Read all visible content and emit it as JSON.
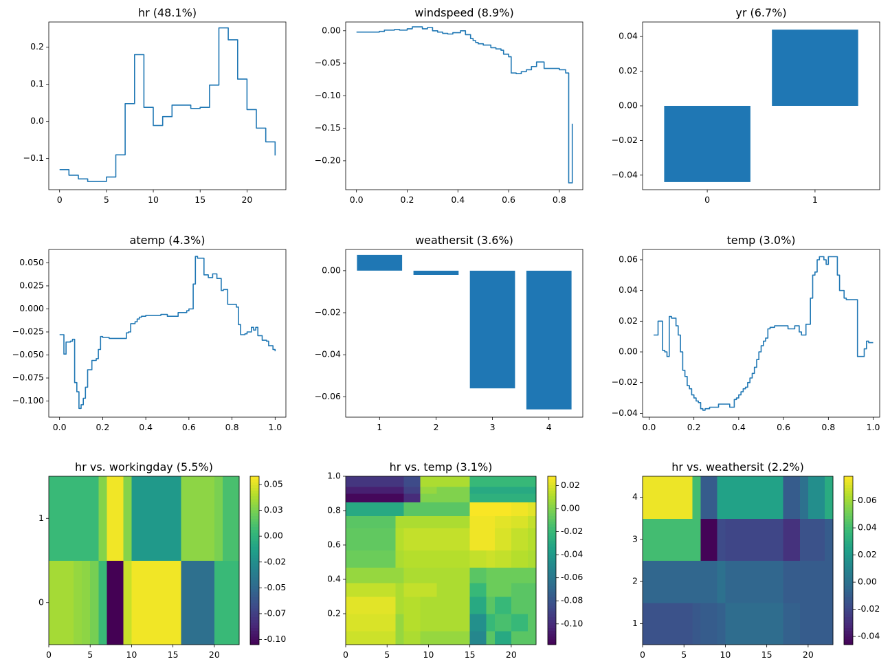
{
  "figure": {
    "background": "#ffffff",
    "line_color": "#1f77b4"
  },
  "chart_data": [
    {
      "id": "hr",
      "type": "line",
      "title": "hr (48.1%)",
      "xlim": [
        -1.15,
        24.15
      ],
      "ylim": [
        -0.184,
        0.268
      ],
      "xticks": [
        0,
        5,
        10,
        15,
        20
      ],
      "xtick_labels": [
        "0",
        "5",
        "10",
        "15",
        "20"
      ],
      "yticks": [
        -0.1,
        0.0,
        0.1,
        0.2
      ],
      "ytick_labels": [
        "−0.1",
        "0.0",
        "0.1",
        "0.2"
      ],
      "step": true,
      "x": [
        0,
        1,
        2,
        3,
        4,
        5,
        6,
        7,
        8,
        9,
        10,
        11,
        12,
        13,
        14,
        15,
        16,
        17,
        18,
        19,
        20,
        21,
        22,
        23
      ],
      "y": [
        -0.13,
        -0.145,
        -0.155,
        -0.162,
        -0.162,
        -0.15,
        -0.09,
        0.048,
        0.18,
        0.038,
        -0.011,
        0.013,
        0.044,
        0.044,
        0.035,
        0.038,
        0.098,
        0.252,
        0.22,
        0.114,
        0.032,
        -0.018,
        -0.055,
        -0.092
      ]
    },
    {
      "id": "windspeed",
      "type": "line",
      "title": "windspeed (8.9%)",
      "xlim": [
        -0.0425,
        0.8925
      ],
      "ylim": [
        -0.2445,
        0.0135
      ],
      "xticks": [
        0,
        0.2,
        0.4,
        0.6,
        0.8
      ],
      "xtick_labels": [
        "0.0",
        "0.2",
        "0.4",
        "0.6",
        "0.8"
      ],
      "yticks": [
        0,
        -0.05,
        -0.1,
        -0.15,
        -0.2
      ],
      "ytick_labels": [
        "0.00",
        "−0.05",
        "−0.10",
        "−0.15",
        "−0.20"
      ],
      "step": true,
      "x": [
        0,
        0.09,
        0.11,
        0.15,
        0.17,
        0.2,
        0.22,
        0.26,
        0.28,
        0.3,
        0.32,
        0.34,
        0.36,
        0.38,
        0.41,
        0.43,
        0.45,
        0.46,
        0.47,
        0.48,
        0.5,
        0.53,
        0.55,
        0.57,
        0.58,
        0.6,
        0.61,
        0.63,
        0.65,
        0.67,
        0.69,
        0.71,
        0.74,
        0.8,
        0.825,
        0.83,
        0.837,
        0.841,
        0.848,
        0.851
      ],
      "y": [
        -0.002,
        -0.001,
        0.001,
        0.002,
        0.001,
        0.003,
        0.006,
        0.003,
        0.005,
        0.0,
        -0.002,
        -0.004,
        -0.005,
        -0.003,
        0.0,
        -0.006,
        -0.012,
        -0.015,
        -0.018,
        -0.02,
        -0.022,
        -0.026,
        -0.028,
        -0.03,
        -0.036,
        -0.04,
        -0.065,
        -0.066,
        -0.063,
        -0.06,
        -0.055,
        -0.048,
        -0.058,
        -0.06,
        -0.065,
        -0.065,
        -0.234,
        -0.234,
        -0.234,
        -0.143
      ]
    },
    {
      "id": "yr",
      "type": "bar",
      "title": "yr (6.7%)",
      "xlim": [
        -0.6,
        1.6
      ],
      "ylim": [
        -0.0484,
        0.0484
      ],
      "categories": [
        "0",
        "1"
      ],
      "values": [
        -0.044,
        0.044
      ],
      "yticks": [
        -0.04,
        -0.02,
        0,
        0.02,
        0.04
      ],
      "ytick_labels": [
        "−0.04",
        "−0.02",
        "0.00",
        "0.02",
        "0.04"
      ]
    },
    {
      "id": "atemp",
      "type": "line",
      "title": "atemp (4.3%)",
      "xlim": [
        -0.05,
        1.05
      ],
      "ylim": [
        -0.1175,
        0.0645
      ],
      "xticks": [
        0,
        0.2,
        0.4,
        0.6,
        0.8,
        1.0
      ],
      "xtick_labels": [
        "0.0",
        "0.2",
        "0.4",
        "0.6",
        "0.8",
        "1.0"
      ],
      "yticks": [
        0.05,
        0.025,
        0,
        -0.025,
        -0.05,
        -0.075,
        -0.1
      ],
      "ytick_labels": [
        "0.050",
        "0.025",
        "0.000",
        "−0.025",
        "−0.050",
        "−0.075",
        "−0.100"
      ],
      "step": true,
      "x": [
        0,
        0.01,
        0.02,
        0.03,
        0.04,
        0.05,
        0.06,
        0.07,
        0.08,
        0.09,
        0.1,
        0.11,
        0.12,
        0.13,
        0.14,
        0.15,
        0.17,
        0.18,
        0.19,
        0.2,
        0.23,
        0.3,
        0.31,
        0.32,
        0.33,
        0.35,
        0.36,
        0.37,
        0.38,
        0.4,
        0.45,
        0.47,
        0.5,
        0.53,
        0.55,
        0.59,
        0.6,
        0.62,
        0.63,
        0.64,
        0.65,
        0.67,
        0.69,
        0.71,
        0.73,
        0.75,
        0.76,
        0.78,
        0.8,
        0.82,
        0.83,
        0.84,
        0.86,
        0.87,
        0.89,
        0.9,
        0.91,
        0.92,
        0.94,
        0.96,
        0.97,
        0.99,
        1.0
      ],
      "y": [
        -0.028,
        -0.028,
        -0.049,
        -0.036,
        -0.036,
        -0.035,
        -0.033,
        -0.08,
        -0.09,
        -0.108,
        -0.104,
        -0.097,
        -0.085,
        -0.066,
        -0.066,
        -0.056,
        -0.054,
        -0.044,
        -0.03,
        -0.031,
        -0.032,
        -0.032,
        -0.026,
        -0.025,
        -0.016,
        -0.014,
        -0.011,
        -0.009,
        -0.008,
        -0.007,
        -0.007,
        -0.006,
        -0.008,
        -0.008,
        -0.004,
        -0.002,
        0.0,
        0.027,
        0.057,
        0.055,
        0.055,
        0.037,
        0.034,
        0.038,
        0.033,
        0.02,
        0.021,
        0.005,
        0.005,
        0.002,
        -0.017,
        -0.028,
        -0.027,
        -0.025,
        -0.02,
        -0.023,
        -0.02,
        -0.029,
        -0.034,
        -0.035,
        -0.04,
        -0.044,
        -0.046
      ]
    },
    {
      "id": "weathersit",
      "type": "bar",
      "title": "weathersit (3.6%)",
      "xlim": [
        0.4,
        4.6
      ],
      "ylim": [
        -0.0697,
        0.0101
      ],
      "categories": [
        "1",
        "2",
        "3",
        "4"
      ],
      "values": [
        0.0075,
        -0.002,
        -0.056,
        -0.066
      ],
      "yticks": [
        0,
        -0.02,
        -0.04,
        -0.06
      ],
      "ytick_labels": [
        "0.00",
        "−0.02",
        "−0.04",
        "−0.06"
      ]
    },
    {
      "id": "temp",
      "type": "line",
      "title": "temp (3.0%)",
      "xlim": [
        -0.029,
        1.029
      ],
      "ylim": [
        -0.0425,
        0.0667
      ],
      "xticks": [
        0,
        0.2,
        0.4,
        0.6,
        0.8,
        1.0
      ],
      "xtick_labels": [
        "0.0",
        "0.2",
        "0.4",
        "0.6",
        "0.8",
        "1.0"
      ],
      "yticks": [
        0.06,
        0.04,
        0.02,
        0,
        -0.02,
        -0.04
      ],
      "ytick_labels": [
        "0.06",
        "0.04",
        "0.02",
        "0.00",
        "−0.02",
        "−0.04"
      ],
      "step": true,
      "x": [
        0.02,
        0.04,
        0.05,
        0.06,
        0.07,
        0.08,
        0.09,
        0.1,
        0.12,
        0.13,
        0.14,
        0.15,
        0.16,
        0.17,
        0.18,
        0.19,
        0.2,
        0.21,
        0.22,
        0.23,
        0.24,
        0.25,
        0.27,
        0.29,
        0.31,
        0.34,
        0.36,
        0.38,
        0.39,
        0.4,
        0.41,
        0.42,
        0.43,
        0.44,
        0.45,
        0.46,
        0.47,
        0.48,
        0.49,
        0.5,
        0.51,
        0.52,
        0.53,
        0.54,
        0.55,
        0.56,
        0.58,
        0.62,
        0.65,
        0.67,
        0.68,
        0.7,
        0.72,
        0.73,
        0.74,
        0.75,
        0.76,
        0.78,
        0.79,
        0.8,
        0.82,
        0.84,
        0.85,
        0.86,
        0.87,
        0.88,
        0.9,
        0.92,
        0.93,
        0.94,
        0.96,
        0.97,
        0.98,
        1.0
      ],
      "y": [
        0.011,
        0.02,
        0.02,
        0.001,
        0.0,
        -0.003,
        0.023,
        0.022,
        0.017,
        0.011,
        0.0,
        -0.012,
        -0.016,
        -0.022,
        -0.024,
        -0.028,
        -0.03,
        -0.032,
        -0.033,
        -0.037,
        -0.038,
        -0.037,
        -0.036,
        -0.036,
        -0.034,
        -0.034,
        -0.036,
        -0.031,
        -0.03,
        -0.028,
        -0.026,
        -0.024,
        -0.023,
        -0.02,
        -0.017,
        -0.014,
        -0.01,
        -0.005,
        0.0,
        0.004,
        0.007,
        0.009,
        0.015,
        0.016,
        0.016,
        0.017,
        0.017,
        0.015,
        0.017,
        0.013,
        0.011,
        0.018,
        0.035,
        0.05,
        0.052,
        0.06,
        0.062,
        0.06,
        0.057,
        0.062,
        0.062,
        0.05,
        0.04,
        0.04,
        0.035,
        0.034,
        0.034,
        0.034,
        -0.003,
        -0.003,
        0.002,
        0.007,
        0.006,
        0.006
      ]
    },
    {
      "id": "hr_workingday",
      "type": "heatmap",
      "title": "hr vs. workingday (5.5%)",
      "xlim": [
        0,
        23
      ],
      "ylim": [
        -0.5,
        1.5
      ],
      "xticks": [
        0,
        5,
        10,
        15,
        20
      ],
      "xtick_labels": [
        "0",
        "5",
        "10",
        "15",
        "20"
      ],
      "yticks": [
        0,
        1
      ],
      "ytick_labels": [
        "0",
        "1"
      ],
      "x_edges": [
        0,
        3,
        4,
        5,
        6,
        7,
        9,
        10,
        11,
        16,
        17,
        20,
        21,
        22,
        23
      ],
      "y_edges": [
        -0.5,
        0.5,
        1.5
      ],
      "values": [
        [
          0.036,
          0.032,
          0.03,
          0.024,
          0.005,
          -0.105,
          0.045,
          0.055,
          0.055,
          -0.045,
          -0.045,
          0.005,
          0.005,
          0.005
        ],
        [
          0.005,
          0.005,
          0.005,
          0.005,
          0.028,
          0.055,
          0.028,
          -0.018,
          -0.018,
          0.03,
          0.03,
          0.025,
          0.01,
          0.01
        ]
      ],
      "vmin": -0.105,
      "vmax": 0.058,
      "colorbar_ticks": [
        0.05,
        0.025,
        0.0,
        -0.025,
        -0.05,
        -0.075,
        -0.1
      ],
      "colorbar_labels": [
        "0.05",
        "0.03",
        "0.00",
        "-0.02",
        "-0.05",
        "-0.07",
        "-0.10"
      ]
    },
    {
      "id": "hr_temp",
      "type": "heatmap",
      "title": "hr vs. temp (3.1%)",
      "xlim": [
        0,
        23
      ],
      "ylim": [
        0.02,
        1.0
      ],
      "xticks": [
        0,
        5,
        10,
        15,
        20
      ],
      "xtick_labels": [
        "0",
        "5",
        "10",
        "15",
        "20"
      ],
      "yticks": [
        0.2,
        0.4,
        0.6,
        0.8,
        1.0
      ],
      "ytick_labels": [
        "0.2",
        "0.4",
        "0.6",
        "0.8",
        "1.0"
      ],
      "x_edges": [
        0,
        6,
        7,
        9,
        11,
        15,
        17,
        18,
        20,
        22,
        23
      ],
      "y_edges": [
        0.02,
        0.1,
        0.2,
        0.3,
        0.38,
        0.47,
        0.57,
        0.7,
        0.77,
        0.85,
        0.9,
        0.94,
        1.0
      ],
      "values": [
        [
          0.017,
          0.005,
          0.01,
          0.005,
          0.005,
          -0.05,
          -0.01,
          -0.03,
          -0.01,
          -0.01
        ],
        [
          0.02,
          0.005,
          0.012,
          0.01,
          0.01,
          -0.045,
          -0.02,
          -0.015,
          -0.02,
          -0.01
        ],
        [
          0.022,
          0.01,
          0.012,
          0.01,
          0.01,
          -0.03,
          -0.01,
          -0.02,
          -0.01,
          -0.01
        ],
        [
          0.015,
          0.01,
          0.015,
          0.015,
          0.01,
          -0.02,
          -0.005,
          -0.005,
          -0.01,
          -0.01
        ],
        [
          0.005,
          0.005,
          0.01,
          0.01,
          0.01,
          -0.01,
          -0.005,
          -0.005,
          -0.005,
          -0.005
        ],
        [
          -0.005,
          0.01,
          0.012,
          0.012,
          0.012,
          0.015,
          0.017,
          0.015,
          0.012,
          0.01
        ],
        [
          -0.008,
          0.012,
          0.015,
          0.015,
          0.015,
          0.025,
          0.025,
          0.02,
          0.015,
          0.012
        ],
        [
          -0.01,
          0.01,
          0.01,
          0.01,
          0.01,
          0.025,
          0.025,
          0.022,
          0.02,
          0.015
        ],
        [
          -0.03,
          -0.03,
          -0.01,
          -0.01,
          -0.01,
          0.027,
          0.027,
          0.027,
          0.025,
          0.022
        ],
        [
          -0.115,
          -0.115,
          -0.1,
          0.0,
          0.0,
          -0.025,
          -0.025,
          -0.025,
          -0.025,
          -0.025
        ],
        [
          -0.105,
          -0.105,
          -0.09,
          0.005,
          0.0,
          -0.03,
          -0.03,
          -0.03,
          -0.03,
          -0.03
        ],
        [
          -0.095,
          -0.095,
          -0.085,
          0.01,
          0.01,
          -0.02,
          -0.02,
          -0.02,
          -0.02,
          -0.02
        ]
      ],
      "vmin": -0.118,
      "vmax": 0.028,
      "colorbar_ticks": [
        0.02,
        0.0,
        -0.02,
        -0.04,
        -0.06,
        -0.08,
        -0.1
      ],
      "colorbar_labels": [
        "0.02",
        "0.00",
        "-0.02",
        "-0.04",
        "-0.06",
        "-0.08",
        "-0.10"
      ]
    },
    {
      "id": "hr_weathersit",
      "type": "heatmap",
      "title": "hr vs. weathersit (2.2%)",
      "xlim": [
        0,
        23
      ],
      "ylim": [
        0.5,
        4.5
      ],
      "xticks": [
        0,
        5,
        10,
        15,
        20
      ],
      "xtick_labels": [
        "0",
        "5",
        "10",
        "15",
        "20"
      ],
      "yticks": [
        1,
        2,
        3,
        4
      ],
      "ytick_labels": [
        "1",
        "2",
        "3",
        "4"
      ],
      "x_edges": [
        0,
        6,
        7,
        9,
        10,
        17,
        19,
        20,
        22,
        23
      ],
      "y_edges": [
        0.5,
        1.5,
        2.5,
        3.5,
        4.5
      ],
      "values": [
        [
          -0.015,
          -0.012,
          -0.01,
          -0.008,
          -0.002,
          -0.008,
          -0.01,
          -0.01,
          -0.01
        ],
        [
          -0.005,
          -0.005,
          -0.005,
          0.0,
          -0.005,
          -0.01,
          -0.01,
          -0.01,
          -0.01
        ],
        [
          0.04,
          0.04,
          -0.045,
          -0.018,
          -0.02,
          -0.028,
          -0.015,
          -0.015,
          -0.01
        ],
        [
          0.075,
          0.04,
          -0.01,
          0.025,
          0.025,
          -0.01,
          0.0,
          0.015,
          0.03
        ]
      ],
      "vmin": -0.046,
      "vmax": 0.078,
      "colorbar_ticks": [
        0.06,
        0.04,
        0.02,
        0.0,
        -0.02,
        -0.04
      ],
      "colorbar_labels": [
        "0.06",
        "0.04",
        "0.02",
        "0.00",
        "-0.02",
        "-0.04"
      ]
    }
  ]
}
